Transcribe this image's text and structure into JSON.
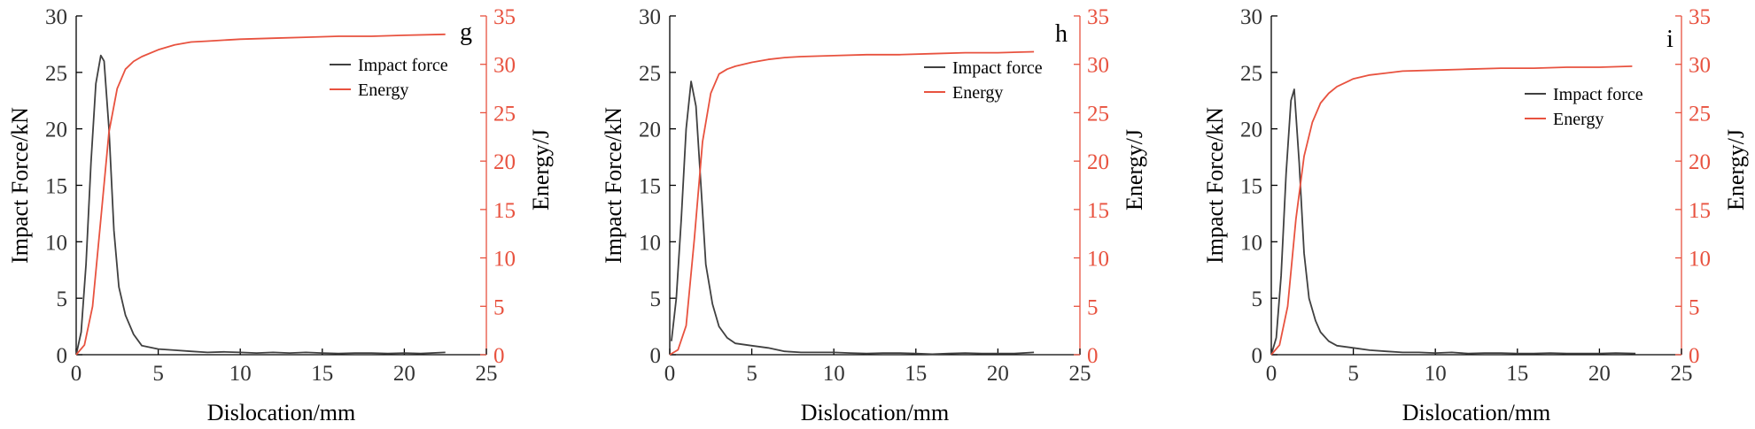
{
  "chart_data": [
    {
      "type": "line",
      "panel_label": "g",
      "xlabel": "Dislocation/mm",
      "ylabel_left": "Impact Force/kN",
      "ylabel_right": "Energy/J",
      "xlim": [
        0,
        25
      ],
      "ylim_left": [
        0,
        30
      ],
      "ylim_right": [
        0,
        35
      ],
      "x_ticks": [
        0,
        5,
        10,
        15,
        20,
        25
      ],
      "y_left_ticks": [
        0,
        5,
        10,
        15,
        20,
        25,
        30
      ],
      "y_right_ticks": [
        0,
        5,
        10,
        15,
        20,
        25,
        30,
        35
      ],
      "legend_position": "top-right",
      "colors": {
        "force": "#404040",
        "energy": "#e8523f"
      },
      "series": [
        {
          "name": "Impact force",
          "axis": "left",
          "x": [
            0,
            0.3,
            0.6,
            0.9,
            1.2,
            1.5,
            1.7,
            2.0,
            2.3,
            2.6,
            3.0,
            3.5,
            4.0,
            5.0,
            6.0,
            7.0,
            8.0,
            9.0,
            10.0,
            11.0,
            12.0,
            13.0,
            14.0,
            15.0,
            16.0,
            17.0,
            18.0,
            19.0,
            20.0,
            21.0,
            22.5
          ],
          "y": [
            0,
            2,
            8,
            17,
            24,
            26.5,
            26,
            20,
            11,
            6,
            3.5,
            1.8,
            0.8,
            0.5,
            0.4,
            0.3,
            0.2,
            0.25,
            0.2,
            0.15,
            0.2,
            0.15,
            0.2,
            0.15,
            0.1,
            0.15,
            0.15,
            0.1,
            0.15,
            0.1,
            0.2
          ]
        },
        {
          "name": "Energy",
          "axis": "right",
          "x": [
            0,
            0.5,
            1.0,
            1.5,
            2.0,
            2.5,
            3.0,
            3.5,
            4.0,
            5.0,
            6.0,
            7.0,
            8.0,
            10.0,
            12.0,
            14.0,
            16.0,
            18.0,
            20.0,
            22.5
          ],
          "y": [
            0,
            1,
            5,
            14,
            23,
            27.5,
            29.5,
            30.3,
            30.8,
            31.5,
            32,
            32.3,
            32.4,
            32.6,
            32.7,
            32.8,
            32.9,
            32.9,
            33,
            33.1
          ]
        }
      ]
    },
    {
      "type": "line",
      "panel_label": "h",
      "xlabel": "Dislocation/mm",
      "ylabel_left": "Impact Force/kN",
      "ylabel_right": "Energy/J",
      "xlim": [
        0,
        25
      ],
      "ylim_left": [
        0,
        30
      ],
      "ylim_right": [
        0,
        35
      ],
      "x_ticks": [
        0,
        5,
        10,
        15,
        20,
        25
      ],
      "y_left_ticks": [
        0,
        5,
        10,
        15,
        20,
        25,
        30
      ],
      "y_right_ticks": [
        0,
        5,
        10,
        15,
        20,
        25,
        30,
        35
      ],
      "legend_position": "top-right",
      "colors": {
        "force": "#404040",
        "energy": "#e8523f"
      },
      "series": [
        {
          "name": "Impact force",
          "axis": "left",
          "x": [
            0.1,
            0.4,
            0.7,
            1.0,
            1.3,
            1.6,
            1.9,
            2.2,
            2.6,
            3.0,
            3.5,
            4.0,
            5.0,
            6.0,
            7.0,
            8.0,
            9.0,
            10.0,
            11.0,
            12.0,
            13.0,
            14.0,
            15.0,
            16.0,
            17.0,
            18.0,
            19.0,
            20.0,
            21.0,
            22.2
          ],
          "y": [
            1.2,
            5,
            12,
            20,
            24.2,
            22,
            15,
            8,
            4.5,
            2.5,
            1.5,
            1.0,
            0.8,
            0.6,
            0.3,
            0.2,
            0.2,
            0.2,
            0.15,
            0.1,
            0.15,
            0.15,
            0.1,
            0.05,
            0.1,
            0.15,
            0.1,
            0.1,
            0.1,
            0.2
          ]
        },
        {
          "name": "Energy",
          "axis": "right",
          "x": [
            0,
            0.5,
            1.0,
            1.5,
            2.0,
            2.5,
            3.0,
            3.5,
            4.0,
            5.0,
            6.0,
            7.0,
            8.0,
            10.0,
            12.0,
            14.0,
            16.0,
            18.0,
            20.0,
            22.2
          ],
          "y": [
            0,
            0.5,
            3,
            12,
            22,
            27,
            29,
            29.5,
            29.8,
            30.2,
            30.5,
            30.7,
            30.8,
            30.9,
            31,
            31,
            31.1,
            31.2,
            31.2,
            31.3
          ]
        }
      ]
    },
    {
      "type": "line",
      "panel_label": "i",
      "xlabel": "Dislocation/mm",
      "ylabel_left": "Impact Force/kN",
      "ylabel_right": "Energy/J",
      "xlim": [
        0,
        25
      ],
      "ylim_left": [
        0,
        30
      ],
      "ylim_right": [
        0,
        35
      ],
      "x_ticks": [
        0,
        5,
        10,
        15,
        20,
        25
      ],
      "y_left_ticks": [
        0,
        5,
        10,
        15,
        20,
        25,
        30
      ],
      "y_right_ticks": [
        0,
        5,
        10,
        15,
        20,
        25,
        30,
        35
      ],
      "legend_position": "top-right",
      "colors": {
        "force": "#404040",
        "energy": "#e8523f"
      },
      "series": [
        {
          "name": "Impact force",
          "axis": "left",
          "x": [
            0,
            0.3,
            0.6,
            0.9,
            1.2,
            1.4,
            1.7,
            2.0,
            2.3,
            2.7,
            3.0,
            3.5,
            4.0,
            5.0,
            6.0,
            7.0,
            8.0,
            9.0,
            10.0,
            11.0,
            12.0,
            13.0,
            14.0,
            15.0,
            16.0,
            17.0,
            18.0,
            19.0,
            20.0,
            21.0,
            22.2
          ],
          "y": [
            0,
            1.5,
            7,
            16,
            22.5,
            23.5,
            17,
            9,
            5,
            3,
            2,
            1.2,
            0.8,
            0.6,
            0.4,
            0.3,
            0.2,
            0.2,
            0.15,
            0.2,
            0.1,
            0.15,
            0.15,
            0.1,
            0.1,
            0.15,
            0.1,
            0.1,
            0.1,
            0.15,
            0.1
          ]
        },
        {
          "name": "Energy",
          "axis": "right",
          "x": [
            0,
            0.5,
            1.0,
            1.5,
            2.0,
            2.5,
            3.0,
            3.5,
            4.0,
            5.0,
            6.0,
            7.0,
            8.0,
            10.0,
            12.0,
            14.0,
            16.0,
            18.0,
            20.0,
            22.0
          ],
          "y": [
            0,
            1,
            5,
            14,
            20.5,
            24,
            26,
            27,
            27.7,
            28.5,
            28.9,
            29.1,
            29.3,
            29.4,
            29.5,
            29.6,
            29.6,
            29.7,
            29.7,
            29.8
          ]
        }
      ]
    }
  ]
}
